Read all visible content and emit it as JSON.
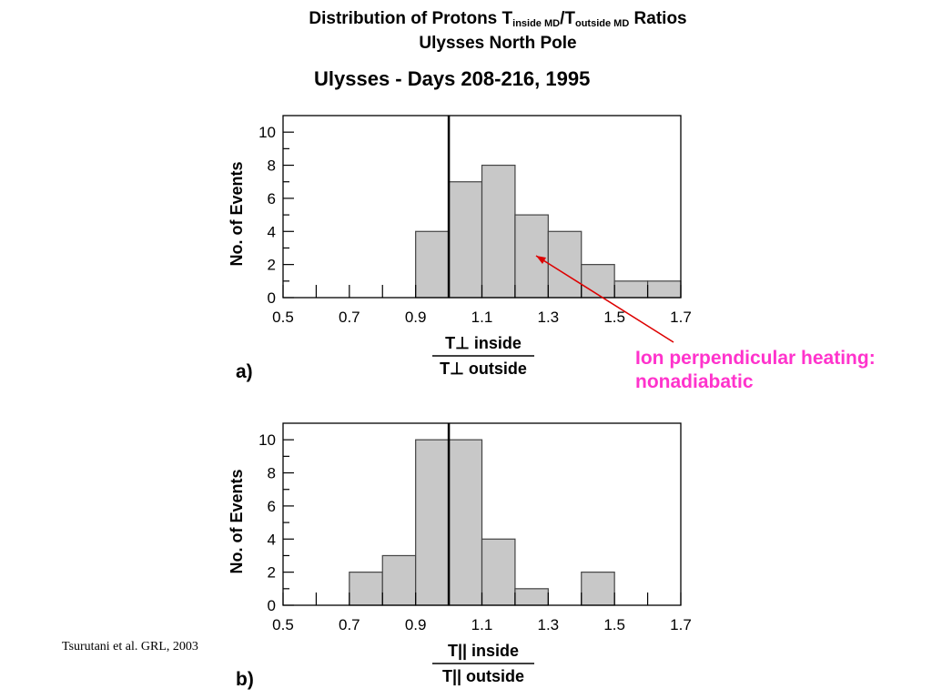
{
  "title": {
    "line1_pre": "Distribution of Protons T",
    "sub_inside": "inside MD",
    "slash": "/T",
    "sub_outside": "outside MD",
    "line1_post": " Ratios",
    "line2": "Ulysses North Pole",
    "line3": "Ulysses  -  Days 208-216, 1995"
  },
  "annotation": {
    "line1": "Ion perpendicular heating:",
    "line2": "nonadiabatic",
    "color": "#ff33cc",
    "arrow_color": "#dd0000"
  },
  "citation": "Tsurutani et al. GRL, 2003",
  "chart_data": [
    {
      "type": "bar",
      "panel_label": "a)",
      "bin_edges": [
        0.5,
        0.6,
        0.7,
        0.8,
        0.9,
        1.0,
        1.1,
        1.2,
        1.3,
        1.4,
        1.5,
        1.6,
        1.7
      ],
      "values": [
        0,
        0,
        0,
        0,
        4,
        7,
        8,
        5,
        4,
        2,
        1,
        1
      ],
      "ylabel": "No. of Events",
      "xlabel_num": "T⊥ inside",
      "xlabel_den": "T⊥ outside",
      "xlim": [
        0.5,
        1.7
      ],
      "ylim": [
        0,
        11
      ],
      "xticks": [
        "0.5",
        "0.7",
        "0.9",
        "1.1",
        "1.3",
        "1.5",
        "1.7"
      ],
      "yticks": [
        "0",
        "2",
        "4",
        "6",
        "8",
        "10"
      ],
      "reference_line_x": 1.0,
      "bar_color": "#c8c8c8"
    },
    {
      "type": "bar",
      "panel_label": "b)",
      "bin_edges": [
        0.5,
        0.6,
        0.7,
        0.8,
        0.9,
        1.0,
        1.1,
        1.2,
        1.3,
        1.4,
        1.5,
        1.6,
        1.7
      ],
      "values": [
        0,
        0,
        2,
        3,
        10,
        10,
        4,
        1,
        0,
        2,
        0,
        0
      ],
      "ylabel": "No. of Events",
      "xlabel_num": "T|| inside",
      "xlabel_den": "T|| outside",
      "xlim": [
        0.5,
        1.7
      ],
      "ylim": [
        0,
        11
      ],
      "xticks": [
        "0.5",
        "0.7",
        "0.9",
        "1.1",
        "1.3",
        "1.5",
        "1.7"
      ],
      "yticks": [
        "0",
        "2",
        "4",
        "6",
        "8",
        "10"
      ],
      "reference_line_x": 1.0,
      "bar_color": "#c8c8c8"
    }
  ]
}
